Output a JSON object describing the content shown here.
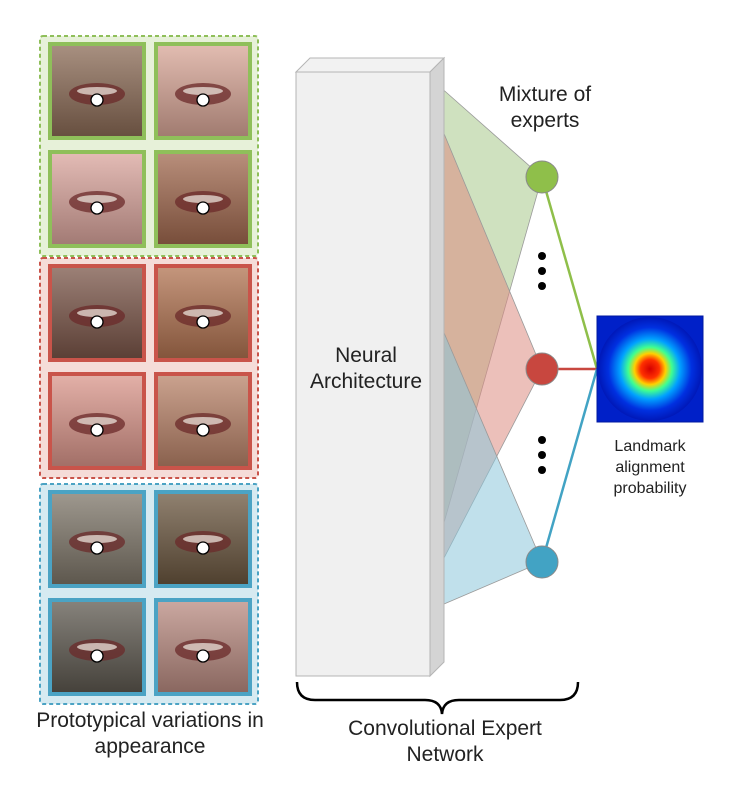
{
  "labels": {
    "mixture": [
      "Mixture of",
      "experts"
    ],
    "neural": [
      "Neural",
      "Architecture"
    ],
    "landmark": [
      "Landmark",
      "alignment",
      "probability"
    ],
    "prototypical": [
      "Prototypical variations in",
      "appearance"
    ],
    "cen": [
      "Convolutional Expert",
      "Network"
    ]
  },
  "groups": [
    {
      "name": "green",
      "border": "#8fbf5a",
      "fill": "#e7f1d9",
      "thumbs": [
        {
          "tone": "#8a6a55"
        },
        {
          "tone": "#d7a596"
        },
        {
          "tone": "#d9a49c"
        },
        {
          "tone": "#a0684e"
        }
      ]
    },
    {
      "name": "red",
      "border": "#c9544a",
      "fill": "#f5dcd8",
      "thumbs": [
        {
          "tone": "#7a5548"
        },
        {
          "tone": "#b07250"
        },
        {
          "tone": "#d9958a"
        },
        {
          "tone": "#b88268"
        }
      ]
    },
    {
      "name": "blue",
      "border": "#4ba3c4",
      "fill": "#d6eaf1",
      "thumbs": [
        {
          "tone": "#7d7568"
        },
        {
          "tone": "#6a563f"
        },
        {
          "tone": "#5d584f"
        },
        {
          "tone": "#b88a80"
        }
      ]
    }
  ],
  "experts": [
    {
      "name": "green-expert",
      "color": "#8fbf4a",
      "fan": "#a8c98a"
    },
    {
      "name": "red-expert",
      "color": "#c8473f",
      "fan": "#dd8c82"
    },
    {
      "name": "blue-expert",
      "color": "#42a3c4",
      "fan": "#8cc7da"
    }
  ]
}
